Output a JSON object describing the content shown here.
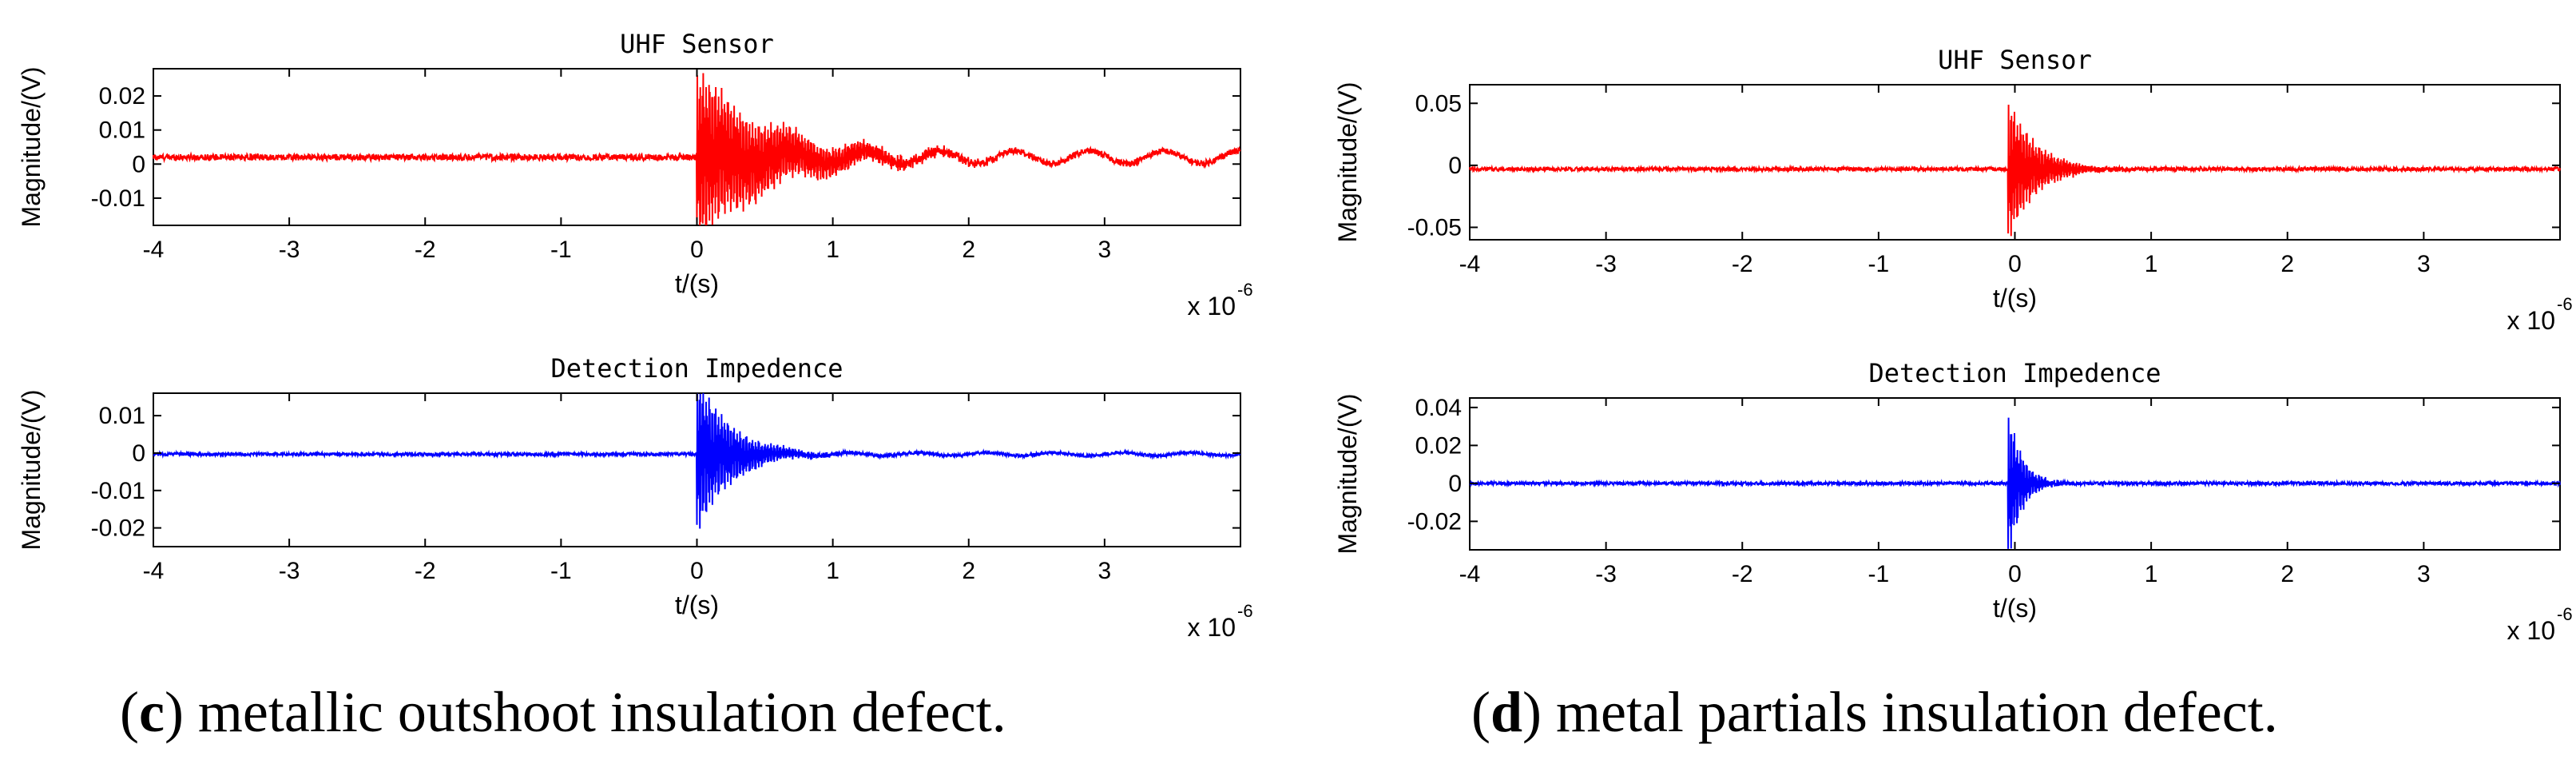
{
  "captions": [
    {
      "letter": "c",
      "text": ") metallic outshoot insulation defect."
    },
    {
      "letter": "d",
      "text": ") metal partials insulation defect."
    }
  ],
  "chart_data": [
    {
      "type": "line",
      "title": "UHF Sensor",
      "xlabel": "t/(s)",
      "ylabel": "Magnitude/(V)",
      "x_multiplier": "x 10",
      "x_exponent": "-6",
      "xlim": [
        -4,
        4
      ],
      "ylim": [
        -0.018,
        0.028
      ],
      "x_ticks": [
        -4,
        -3,
        -2,
        -1,
        0,
        1,
        2,
        3
      ],
      "x_tick_labels": [
        "-4",
        "-3",
        "-2",
        "-1",
        "0",
        "1",
        "2",
        "3"
      ],
      "y_ticks": [
        0.02,
        0.01,
        0,
        -0.01
      ],
      "y_tick_labels": [
        "0.02",
        "0.01",
        "0",
        "-0.01"
      ],
      "color": "#ff0000",
      "signal": {
        "baseline": 0.002,
        "noise": 0.0009,
        "peak_time": 0.0,
        "peak_amplitude": 0.026,
        "decay_us": 0.55,
        "tail_amplitude": 0.0018,
        "tail_period_us": 0.55
      }
    },
    {
      "type": "line",
      "title": "Detection Impedence",
      "xlabel": "t/(s)",
      "ylabel": "Magnitude/(V)",
      "x_multiplier": "x 10",
      "x_exponent": "-6",
      "xlim": [
        -4,
        4
      ],
      "ylim": [
        -0.025,
        0.016
      ],
      "x_ticks": [
        -4,
        -3,
        -2,
        -1,
        0,
        1,
        2,
        3
      ],
      "x_tick_labels": [
        "-4",
        "-3",
        "-2",
        "-1",
        "0",
        "1",
        "2",
        "3"
      ],
      "y_ticks": [
        0.01,
        0,
        -0.01,
        -0.02
      ],
      "y_tick_labels": [
        "0.01",
        "0",
        "-0.01",
        "-0.02"
      ],
      "color": "#0000ff",
      "signal": {
        "baseline": -0.0003,
        "noise": 0.0004,
        "peak_time": 0.0,
        "peak_amplitude": 0.022,
        "decay_us": 0.25,
        "tail_amplitude": 0.0004,
        "tail_period_us": 0.5
      }
    },
    {
      "type": "line",
      "title": "UHF Sensor",
      "xlabel": "t/(s)",
      "ylabel": "Magnitude/(V)",
      "x_multiplier": "x 10",
      "x_exponent": "-6",
      "xlim": [
        -4,
        4
      ],
      "ylim": [
        -0.06,
        0.065
      ],
      "x_ticks": [
        -4,
        -3,
        -2,
        -1,
        0,
        1,
        2,
        3
      ],
      "x_tick_labels": [
        "-4",
        "-3",
        "-2",
        "-1",
        "0",
        "1",
        "2",
        "3"
      ],
      "y_ticks": [
        0.05,
        0,
        -0.05
      ],
      "y_tick_labels": [
        "0.05",
        "0",
        "-0.05"
      ],
      "color": "#ff0000",
      "signal": {
        "baseline": -0.003,
        "noise": 0.0015,
        "peak_time": -0.05,
        "peak_amplitude": 0.06,
        "decay_us": 0.2,
        "tail_amplitude": 0.0,
        "tail_period_us": 0.5
      }
    },
    {
      "type": "line",
      "title": "Detection Impedence",
      "xlabel": "t/(s)",
      "ylabel": "Magnitude/(V)",
      "x_multiplier": "x 10",
      "x_exponent": "-6",
      "xlim": [
        -4,
        4
      ],
      "ylim": [
        -0.035,
        0.045
      ],
      "x_ticks": [
        -4,
        -3,
        -2,
        -1,
        0,
        1,
        2,
        3
      ],
      "x_tick_labels": [
        "-4",
        "-3",
        "-2",
        "-1",
        "0",
        "1",
        "2",
        "3"
      ],
      "y_ticks": [
        0.04,
        0.02,
        0,
        -0.02
      ],
      "y_tick_labels": [
        "0.04",
        "0.02",
        "0",
        "-0.02"
      ],
      "color": "#0000ff",
      "signal": {
        "baseline": 0.0,
        "noise": 0.0008,
        "peak_time": -0.05,
        "peak_amplitude": 0.042,
        "decay_us": 0.1,
        "tail_amplitude": 0.0,
        "tail_period_us": 0.5
      }
    }
  ]
}
